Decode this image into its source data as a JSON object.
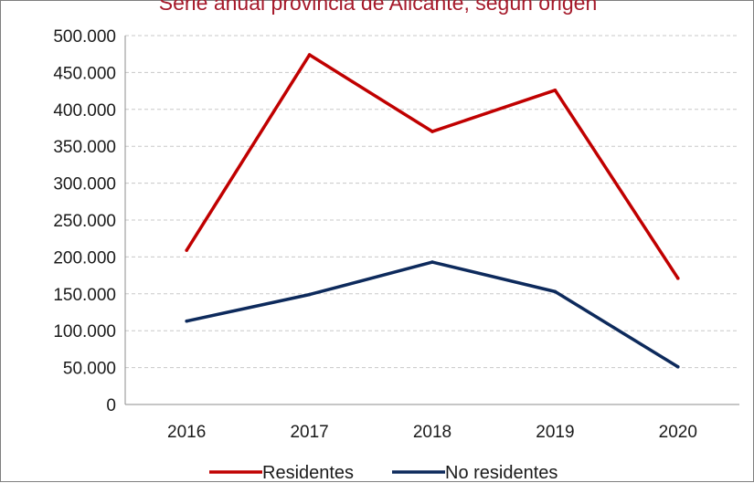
{
  "chart_data": {
    "type": "line",
    "title": "Serie anual provincia de Alicante, según origen",
    "categories": [
      "2016",
      "2017",
      "2018",
      "2019",
      "2020"
    ],
    "series": [
      {
        "name": "Residentes",
        "color": "#c00000",
        "values": [
          209000,
          474000,
          370000,
          426000,
          171000
        ]
      },
      {
        "name": "No residentes",
        "color": "#0d2a5c",
        "values": [
          113000,
          149000,
          193000,
          153000,
          51000
        ]
      }
    ],
    "yticks": [
      "0",
      "50.000",
      "100.000",
      "150.000",
      "200.000",
      "250.000",
      "300.000",
      "350.000",
      "400.000",
      "450.000",
      "500.000"
    ],
    "ylim": [
      0,
      500000
    ],
    "xlabel": "",
    "ylabel": "",
    "grid": true,
    "legend_position": "bottom"
  }
}
